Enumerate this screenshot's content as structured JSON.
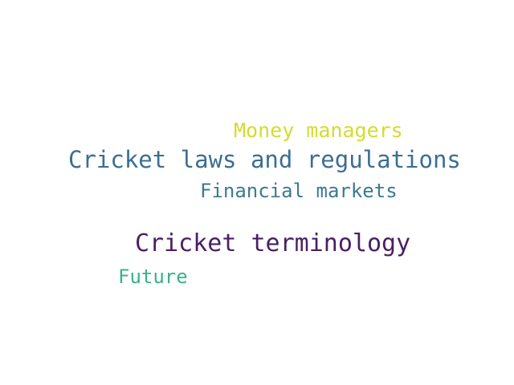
{
  "words": [
    {
      "text": "Money managers",
      "color": "#d2dc2e"
    },
    {
      "text": "Cricket laws and regulations",
      "color": "#3b6e93"
    },
    {
      "text": "Financial markets",
      "color": "#3c7a91"
    },
    {
      "text": "Cricket terminology",
      "color": "#4a1f64"
    },
    {
      "text": "Future",
      "color": "#3ab189"
    }
  ]
}
